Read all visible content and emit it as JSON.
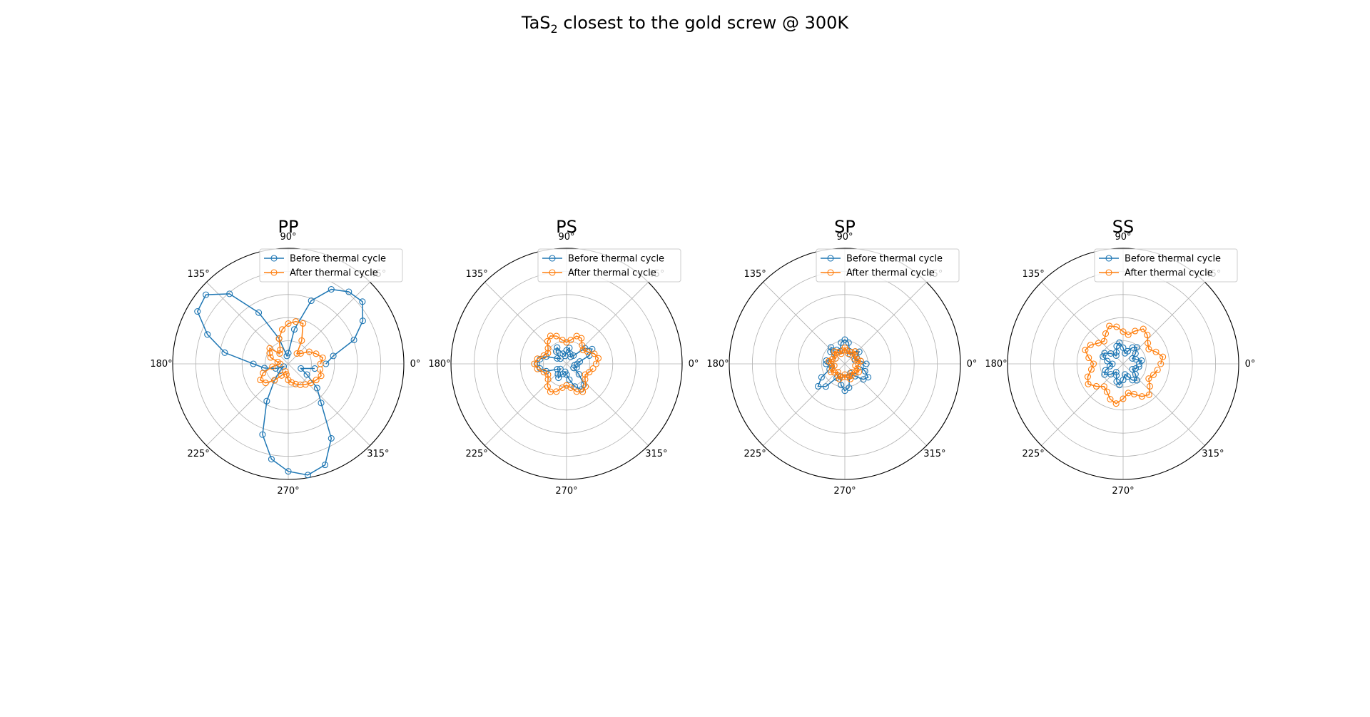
{
  "figure": {
    "title_main": "TaS",
    "title_sub": "2",
    "title_rest": " closest to the gold screw @ 300K"
  },
  "chart_data": [
    {
      "type": "line",
      "polar": true,
      "title": "PP",
      "angle_tick_labels": [
        "0°",
        "45°",
        "90°",
        "135°",
        "180°",
        "225°",
        "270°",
        "315°"
      ],
      "radial_ticks_shown": false,
      "rlim": [
        0,
        4.3
      ],
      "grid": true,
      "legend_placement": "top-right",
      "series": [
        {
          "name": "Before thermal cycle",
          "color": "#1f77b4",
          "marker": "open-circle",
          "angle_deg": [
            0,
            10,
            20,
            30,
            40,
            50,
            60,
            70,
            80,
            90,
            100,
            110,
            120,
            130,
            140,
            150,
            160,
            170,
            180,
            190,
            200,
            210,
            220,
            230,
            240,
            250,
            260,
            270,
            280,
            290,
            300,
            310,
            320,
            330,
            340,
            350
          ],
          "r": [
            1.4,
            1.7,
            2.6,
            3.2,
            3.6,
            3.5,
            3.2,
            2.5,
            1.3,
            0.4,
            0.3,
            1.0,
            2.2,
            3.4,
            4.0,
            3.9,
            3.2,
            2.4,
            1.3,
            0.9,
            0.5,
            0.2,
            0.4,
            0.8,
            1.6,
            2.8,
            3.6,
            4.0,
            4.2,
            4.0,
            3.2,
            1.9,
            1.4,
            0.8,
            0.5,
            1.0
          ]
        },
        {
          "name": "After thermal cycle",
          "color": "#ff7f0e",
          "marker": "open-circle",
          "angle_deg": [
            0,
            10,
            20,
            30,
            40,
            50,
            60,
            70,
            80,
            90,
            100,
            110,
            120,
            130,
            140,
            150,
            160,
            170,
            180,
            190,
            200,
            210,
            220,
            230,
            240,
            250,
            260,
            270,
            280,
            290,
            300,
            310,
            320,
            330,
            340,
            350
          ],
          "r": [
            1.2,
            1.3,
            1.1,
            0.9,
            0.6,
            0.5,
            1.0,
            1.6,
            1.6,
            1.5,
            1.3,
            1.0,
            0.6,
            0.5,
            0.9,
            0.8,
            0.7,
            0.4,
            0.3,
            0.6,
            1.0,
            1.2,
            1.1,
            0.8,
            0.5,
            0.3,
            0.4,
            0.6,
            0.7,
            0.8,
            0.9,
            1.0,
            1.1,
            1.2,
            1.3,
            1.2
          ]
        }
      ]
    },
    {
      "type": "line",
      "polar": true,
      "title": "PS",
      "angle_tick_labels": [
        "0°",
        "45°",
        "90°",
        "135°",
        "180°",
        "225°",
        "270°",
        "315°"
      ],
      "radial_ticks_shown": false,
      "rlim": [
        0,
        4.3
      ],
      "grid": true,
      "legend_placement": "top-right",
      "series": [
        {
          "name": "Before thermal cycle",
          "color": "#1f77b4",
          "marker": "open-circle",
          "angle_deg": [
            0,
            10,
            20,
            30,
            40,
            50,
            60,
            70,
            80,
            90,
            100,
            110,
            120,
            130,
            140,
            150,
            160,
            170,
            180,
            190,
            200,
            210,
            220,
            230,
            240,
            250,
            260,
            270,
            280,
            290,
            300,
            310,
            320,
            330,
            340,
            350
          ],
          "r": [
            0.4,
            0.5,
            0.9,
            1.1,
            0.9,
            0.4,
            0.3,
            0.4,
            0.6,
            0.5,
            0.3,
            0.4,
            0.7,
            0.6,
            0.3,
            0.4,
            0.8,
            1.0,
            1.1,
            1.0,
            0.8,
            0.4,
            0.3,
            0.5,
            0.6,
            0.4,
            0.3,
            0.4,
            0.6,
            0.9,
            1.1,
            1.0,
            0.6,
            0.3,
            0.4,
            0.3
          ]
        },
        {
          "name": "After thermal cycle",
          "color": "#ff7f0e",
          "marker": "open-circle",
          "angle_deg": [
            0,
            10,
            20,
            30,
            40,
            50,
            60,
            70,
            80,
            90,
            100,
            110,
            120,
            130,
            140,
            150,
            160,
            170,
            180,
            190,
            200,
            210,
            220,
            230,
            240,
            250,
            260,
            270,
            280,
            290,
            300,
            310,
            320,
            330,
            340,
            350
          ],
          "r": [
            1.1,
            1.2,
            1.1,
            0.9,
            0.8,
            0.9,
            1.1,
            1.1,
            0.9,
            0.8,
            0.9,
            1.1,
            1.2,
            1.1,
            0.9,
            0.8,
            0.9,
            1.1,
            1.2,
            1.1,
            0.9,
            0.8,
            0.9,
            1.1,
            1.2,
            1.1,
            0.9,
            0.8,
            0.9,
            1.1,
            1.2,
            1.1,
            0.9,
            0.8,
            0.9,
            1.0
          ]
        }
      ]
    },
    {
      "type": "line",
      "polar": true,
      "title": "SP",
      "angle_tick_labels": [
        "0°",
        "45°",
        "90°",
        "135°",
        "180°",
        "225°",
        "270°",
        "315°"
      ],
      "radial_ticks_shown": false,
      "rlim": [
        0,
        4.3
      ],
      "grid": true,
      "legend_placement": "top-right",
      "series": [
        {
          "name": "Before thermal cycle",
          "color": "#1f77b4",
          "marker": "open-circle",
          "angle_deg": [
            0,
            10,
            20,
            30,
            40,
            50,
            60,
            70,
            80,
            90,
            100,
            110,
            120,
            130,
            140,
            150,
            160,
            170,
            180,
            190,
            200,
            210,
            220,
            230,
            240,
            250,
            260,
            270,
            280,
            290,
            300,
            310,
            320,
            330,
            340,
            350
          ],
          "r": [
            0.8,
            0.6,
            0.4,
            0.5,
            0.7,
            0.6,
            0.4,
            0.5,
            0.8,
            0.9,
            0.8,
            0.5,
            0.6,
            0.8,
            0.7,
            0.4,
            0.5,
            0.7,
            0.7,
            0.5,
            0.6,
            1.0,
            1.3,
            1.1,
            0.6,
            0.5,
            0.8,
            1.0,
            0.9,
            0.5,
            0.4,
            0.6,
            0.9,
            1.0,
            0.8,
            0.6
          ]
        },
        {
          "name": "After thermal cycle",
          "color": "#ff7f0e",
          "marker": "open-circle",
          "angle_deg": [
            0,
            10,
            20,
            30,
            40,
            50,
            60,
            70,
            80,
            90,
            100,
            110,
            120,
            130,
            140,
            150,
            160,
            170,
            180,
            190,
            200,
            210,
            220,
            230,
            240,
            250,
            260,
            270,
            280,
            290,
            300,
            310,
            320,
            330,
            340,
            350
          ],
          "r": [
            0.5,
            0.6,
            0.5,
            0.4,
            0.5,
            0.6,
            0.5,
            0.4,
            0.5,
            0.6,
            0.5,
            0.4,
            0.5,
            0.6,
            0.5,
            0.4,
            0.5,
            0.6,
            0.5,
            0.4,
            0.5,
            0.6,
            0.5,
            0.4,
            0.5,
            0.6,
            0.5,
            0.4,
            0.5,
            0.6,
            0.5,
            0.4,
            0.5,
            0.6,
            0.5,
            0.4
          ]
        }
      ]
    },
    {
      "type": "line",
      "polar": true,
      "title": "SS",
      "angle_tick_labels": [
        "0°",
        "45°",
        "90°",
        "135°",
        "180°",
        "225°",
        "270°",
        "315°"
      ],
      "radial_ticks_shown": false,
      "rlim": [
        0,
        4.3
      ],
      "grid": true,
      "legend_placement": "top-right",
      "series": [
        {
          "name": "Before thermal cycle",
          "color": "#1f77b4",
          "marker": "open-circle",
          "angle_deg": [
            0,
            10,
            20,
            30,
            40,
            50,
            60,
            70,
            80,
            90,
            100,
            110,
            120,
            130,
            140,
            150,
            160,
            170,
            180,
            190,
            200,
            210,
            220,
            230,
            240,
            250,
            260,
            270,
            280,
            290,
            300,
            310,
            320,
            330,
            340,
            350
          ],
          "r": [
            0.6,
            0.7,
            0.5,
            0.4,
            0.6,
            0.8,
            0.7,
            0.5,
            0.4,
            0.6,
            0.8,
            0.7,
            0.5,
            0.4,
            0.6,
            0.8,
            0.8,
            0.6,
            0.4,
            0.5,
            0.7,
            0.8,
            0.6,
            0.4,
            0.5,
            0.7,
            0.8,
            0.6,
            0.4,
            0.5,
            0.7,
            0.8,
            0.6,
            0.4,
            0.5,
            0.6
          ]
        },
        {
          "name": "After thermal cycle",
          "color": "#ff7f0e",
          "marker": "open-circle",
          "angle_deg": [
            0,
            10,
            20,
            30,
            40,
            50,
            60,
            70,
            80,
            90,
            100,
            110,
            120,
            130,
            140,
            150,
            160,
            170,
            180,
            190,
            200,
            210,
            220,
            230,
            240,
            250,
            260,
            270,
            280,
            290,
            300,
            310,
            320,
            330,
            340,
            350
          ],
          "r": [
            1.4,
            1.5,
            1.3,
            1.1,
            1.2,
            1.4,
            1.5,
            1.3,
            1.1,
            1.2,
            1.4,
            1.5,
            1.3,
            1.1,
            1.2,
            1.4,
            1.5,
            1.3,
            1.1,
            1.2,
            1.4,
            1.5,
            1.3,
            1.1,
            1.2,
            1.4,
            1.5,
            1.3,
            1.1,
            1.2,
            1.4,
            1.5,
            1.3,
            1.1,
            1.2,
            1.3
          ]
        }
      ]
    }
  ]
}
